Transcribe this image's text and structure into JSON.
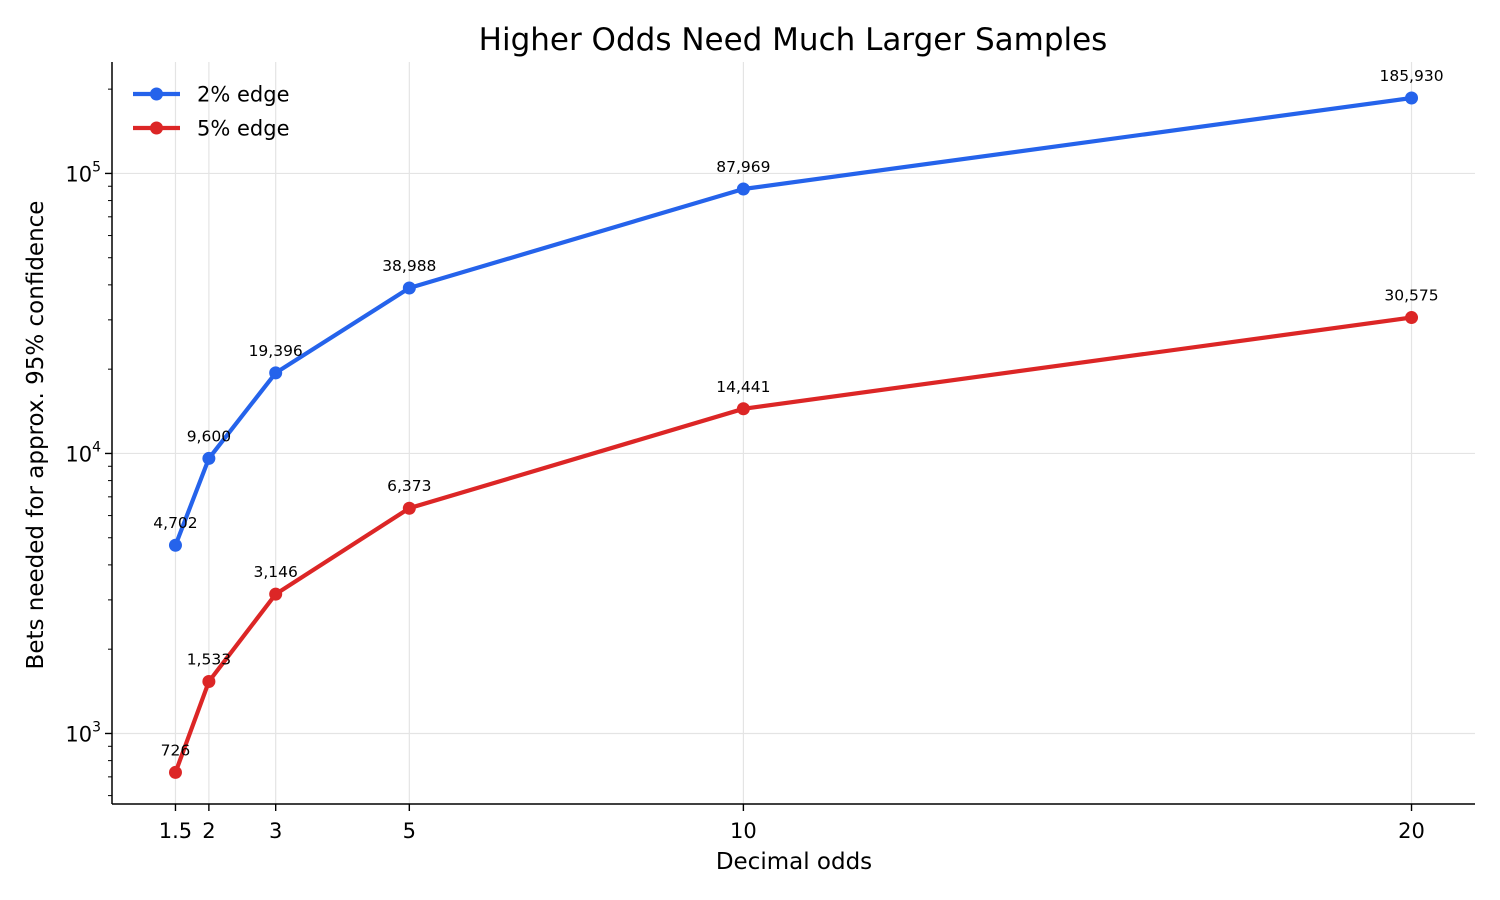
{
  "chart_data": {
    "type": "line",
    "title": "Higher Odds Need Much Larger Samples",
    "xlabel": "Decimal odds",
    "ylabel": "Bets needed for approx. 95% confidence",
    "x": [
      1.5,
      2,
      3,
      5,
      10,
      20
    ],
    "x_tick_labels": [
      "1.5",
      "2",
      "3",
      "5",
      "10",
      "20"
    ],
    "y_scale": "log",
    "y_ticks": [
      {
        "value": 1000,
        "base": "10",
        "exp": "3"
      },
      {
        "value": 10000,
        "base": "10",
        "exp": "4"
      },
      {
        "value": 100000,
        "base": "10",
        "exp": "5"
      }
    ],
    "xlim": [
      0.55,
      20.95
    ],
    "ylim": [
      560,
      250000
    ],
    "grid": true,
    "legend_position": "top-left",
    "series": [
      {
        "name": "2% edge",
        "color": "#2563eb",
        "values": [
          4702,
          9600,
          19396,
          38988,
          87969,
          185930
        ],
        "labels": [
          "4,702",
          "9,600",
          "19,396",
          "38,988",
          "87,969",
          "185,930"
        ]
      },
      {
        "name": "5% edge",
        "color": "#dc2626",
        "values": [
          726,
          1533,
          3146,
          6373,
          14441,
          30575
        ],
        "labels": [
          "726",
          "1,533",
          "3,146",
          "6,373",
          "14,441",
          "30,575"
        ]
      }
    ]
  }
}
